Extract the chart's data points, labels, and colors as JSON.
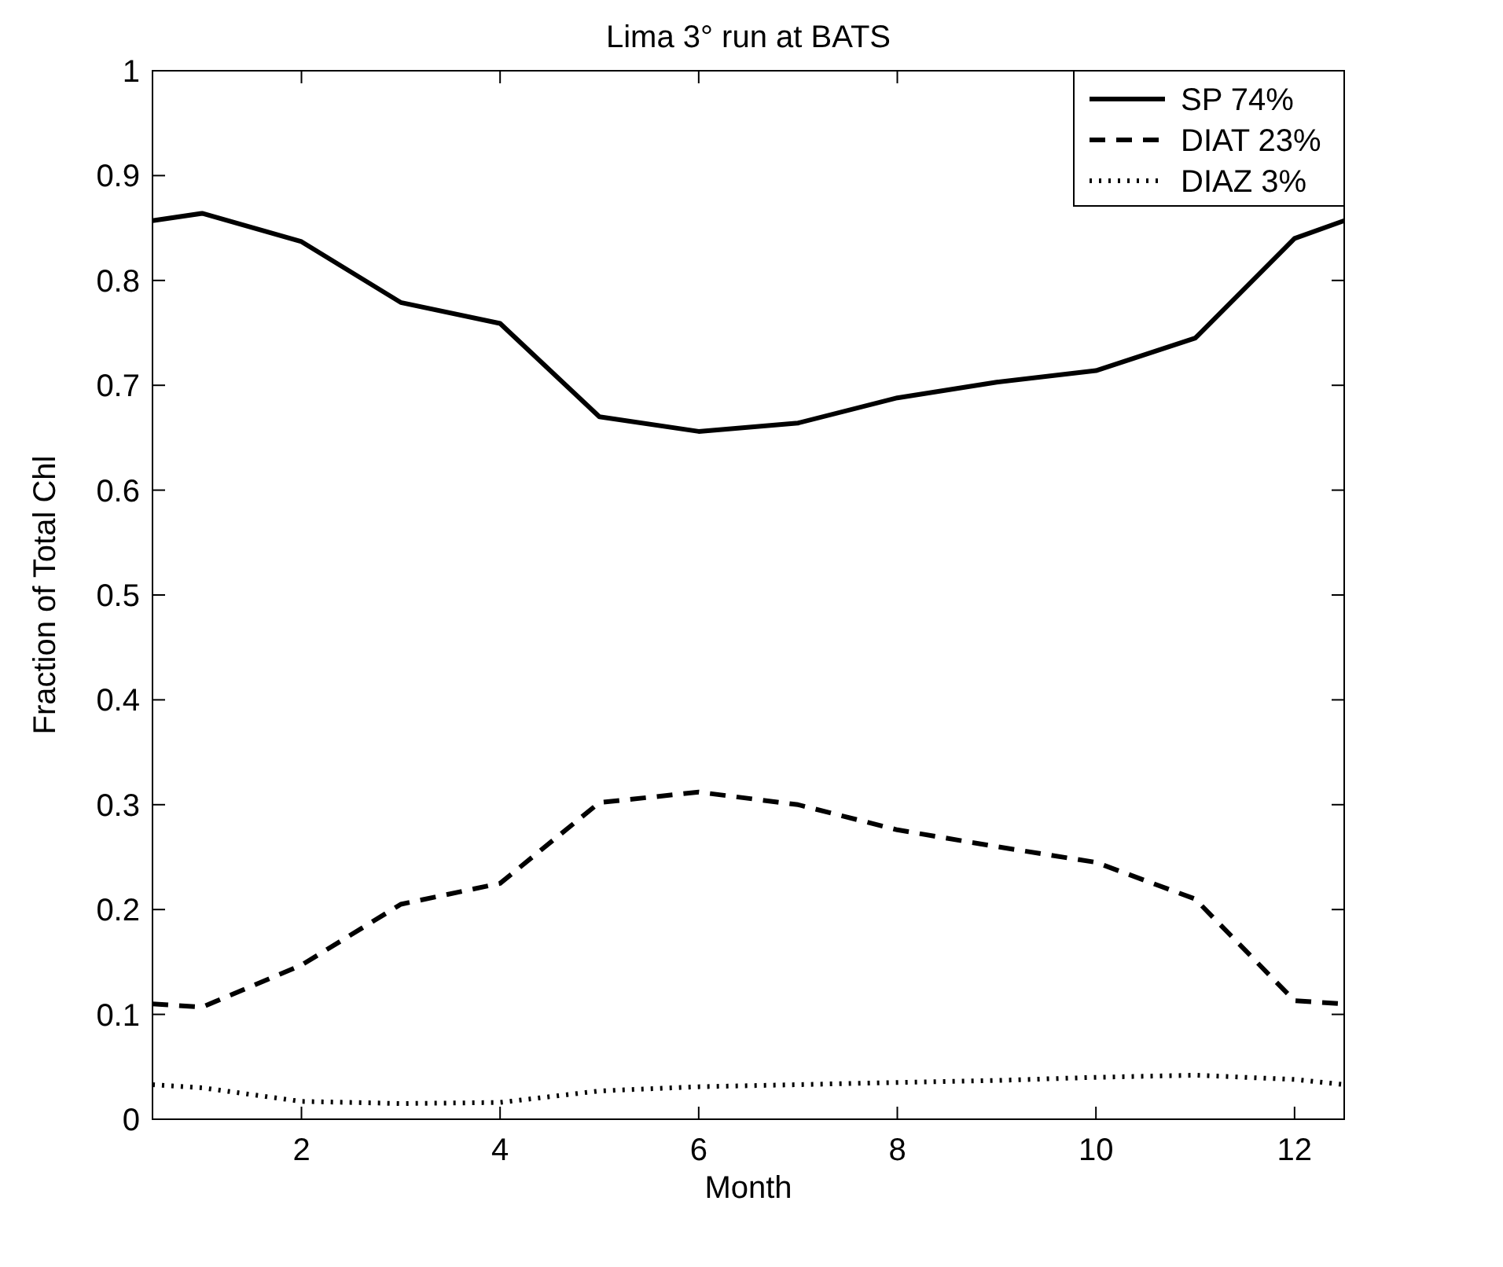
{
  "chart_data": {
    "type": "line",
    "title": "Lima 3° run at BATS",
    "xlabel": "Month",
    "ylabel": "Fraction of Total Chl",
    "x": [
      0.5,
      1,
      2,
      3,
      4,
      5,
      6,
      7,
      8,
      9,
      10,
      11,
      12,
      12.5
    ],
    "series": [
      {
        "name": "SP 74%",
        "color": "#000000",
        "line_style": "solid",
        "values": [
          0.857,
          0.864,
          0.837,
          0.779,
          0.759,
          0.67,
          0.656,
          0.664,
          0.688,
          0.703,
          0.714,
          0.745,
          0.84,
          0.857
        ]
      },
      {
        "name": "DIAT 23%",
        "color": "#000000",
        "line_style": "dashed",
        "values": [
          0.11,
          0.107,
          0.147,
          0.205,
          0.225,
          0.302,
          0.312,
          0.3,
          0.276,
          0.26,
          0.245,
          0.21,
          0.113,
          0.11
        ]
      },
      {
        "name": "DIAZ 3%",
        "color": "#000000",
        "line_style": "dotted",
        "values": [
          0.033,
          0.03,
          0.017,
          0.015,
          0.016,
          0.027,
          0.031,
          0.033,
          0.035,
          0.037,
          0.04,
          0.042,
          0.038,
          0.033
        ]
      }
    ],
    "xlim": [
      0.5,
      12.5
    ],
    "xticks": [
      2,
      4,
      6,
      8,
      10,
      12
    ],
    "ylim": [
      0,
      1
    ],
    "yticks": [
      0,
      0.1,
      0.2,
      0.3,
      0.4,
      0.5,
      0.6,
      0.7,
      0.8,
      0.9,
      1
    ],
    "grid": false,
    "legend": "top right"
  }
}
